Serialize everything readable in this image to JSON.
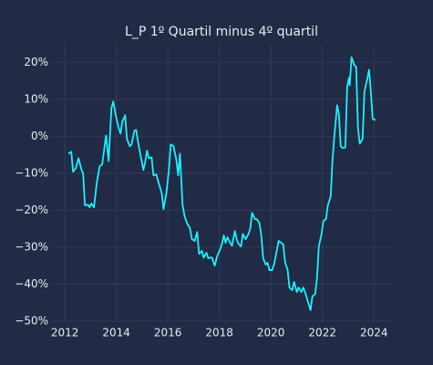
{
  "chart_data": {
    "type": "line",
    "title": "L_P 1º Quartil minus 4º quartil",
    "color": "#1ef0ff",
    "grid": true,
    "xlim": [
      2011.5,
      2024.7
    ],
    "xticks": [
      2012,
      2014,
      2016,
      2018,
      2020,
      2022,
      2024
    ],
    "ylim": [
      -50,
      25
    ],
    "yticks": [
      {
        "value": -50,
        "label": "−50%"
      },
      {
        "value": -40,
        "label": "−40%"
      },
      {
        "value": -30,
        "label": "−30%"
      },
      {
        "value": -20,
        "label": "−20%"
      },
      {
        "value": -10,
        "label": "−10%"
      },
      {
        "value": 0,
        "label": "0%"
      },
      {
        "value": 10,
        "label": "10%"
      },
      {
        "value": 20,
        "label": "20%"
      }
    ],
    "x": [
      2012.14,
      2012.25,
      2012.32,
      2012.43,
      2012.53,
      2012.64,
      2012.71,
      2012.78,
      2012.89,
      2012.96,
      2013.03,
      2013.13,
      2013.24,
      2013.35,
      2013.45,
      2013.6,
      2013.7,
      2013.81,
      2013.88,
      2013.99,
      2014.09,
      2014.16,
      2014.23,
      2014.34,
      2014.41,
      2014.52,
      2014.59,
      2014.7,
      2014.77,
      2014.84,
      2014.94,
      2015.05,
      2015.12,
      2015.19,
      2015.26,
      2015.37,
      2015.44,
      2015.55,
      2015.65,
      2015.76,
      2015.83,
      2015.94,
      2016.04,
      2016.11,
      2016.22,
      2016.33,
      2016.4,
      2016.47,
      2016.57,
      2016.65,
      2016.75,
      2016.86,
      2016.93,
      2017.04,
      2017.14,
      2017.21,
      2017.32,
      2017.39,
      2017.5,
      2017.57,
      2017.64,
      2017.71,
      2017.82,
      2017.92,
      2017.99,
      2018.1,
      2018.17,
      2018.24,
      2018.31,
      2018.42,
      2018.49,
      2018.6,
      2018.67,
      2018.74,
      2018.84,
      2018.91,
      2019.02,
      2019.13,
      2019.2,
      2019.27,
      2019.38,
      2019.45,
      2019.55,
      2019.62,
      2019.7,
      2019.8,
      2019.87,
      2019.94,
      2020.05,
      2020.12,
      2020.19,
      2020.3,
      2020.4,
      2020.48,
      2020.55,
      2020.65,
      2020.72,
      2020.83,
      2020.9,
      2021.01,
      2021.08,
      2021.18,
      2021.26,
      2021.36,
      2021.43,
      2021.54,
      2021.61,
      2021.72,
      2021.79,
      2021.86,
      2021.96,
      2022.04,
      2022.14,
      2022.21,
      2022.32,
      2022.39,
      2022.46,
      2022.57,
      2022.64,
      2022.71,
      2022.78,
      2022.89,
      2022.96,
      2023.03,
      2023.06,
      2023.13,
      2023.24,
      2023.31,
      2023.38,
      2023.45,
      2023.56,
      2023.63,
      2023.74,
      2023.81,
      2023.88,
      2023.95,
      2024.06
    ],
    "values": [
      -4.7,
      -4.2,
      -9.6,
      -8.6,
      -5.9,
      -8.9,
      -10.1,
      -18.7,
      -18.5,
      -19.2,
      -18.2,
      -19.2,
      -12.6,
      -8.1,
      -7.6,
      0.2,
      -6.7,
      7.6,
      9.4,
      5.2,
      2.2,
      0.7,
      3.9,
      5.7,
      -0.7,
      -2.7,
      -2.2,
      1.5,
      1.7,
      -1.5,
      -5.2,
      -9.1,
      -6.9,
      -3.9,
      -5.9,
      -5.7,
      -10.6,
      -10.3,
      -12.8,
      -15.3,
      -19.7,
      -15.5,
      -9.1,
      -2.2,
      -2.7,
      -6.4,
      -10.6,
      -4.7,
      -18.5,
      -21.7,
      -23.6,
      -24.9,
      -27.8,
      -28.3,
      -25.9,
      -31.8,
      -31.0,
      -32.8,
      -31.5,
      -33.0,
      -32.8,
      -32.8,
      -35.0,
      -32.3,
      -31.3,
      -29.1,
      -26.8,
      -28.8,
      -27.3,
      -28.8,
      -29.6,
      -25.6,
      -27.8,
      -29.1,
      -29.8,
      -26.4,
      -27.8,
      -26.4,
      -24.9,
      -20.7,
      -22.4,
      -22.4,
      -23.4,
      -26.4,
      -33.0,
      -34.7,
      -34.2,
      -36.2,
      -36.2,
      -34.7,
      -32.3,
      -28.3,
      -28.8,
      -29.3,
      -34.0,
      -36.2,
      -40.9,
      -41.6,
      -39.4,
      -42.1,
      -40.9,
      -42.1,
      -40.9,
      -42.9,
      -44.6,
      -47.0,
      -43.3,
      -42.6,
      -38.4,
      -29.8,
      -26.6,
      -22.9,
      -22.4,
      -18.7,
      -16.3,
      -6.4,
      -0.2,
      8.4,
      5.9,
      -2.7,
      -3.2,
      -3.0,
      13.3,
      15.8,
      13.8,
      21.4,
      19.2,
      18.7,
      2.2,
      -2.0,
      -0.7,
      12.1,
      15.5,
      18.0,
      12.1,
      4.7,
      4.4
    ]
  }
}
